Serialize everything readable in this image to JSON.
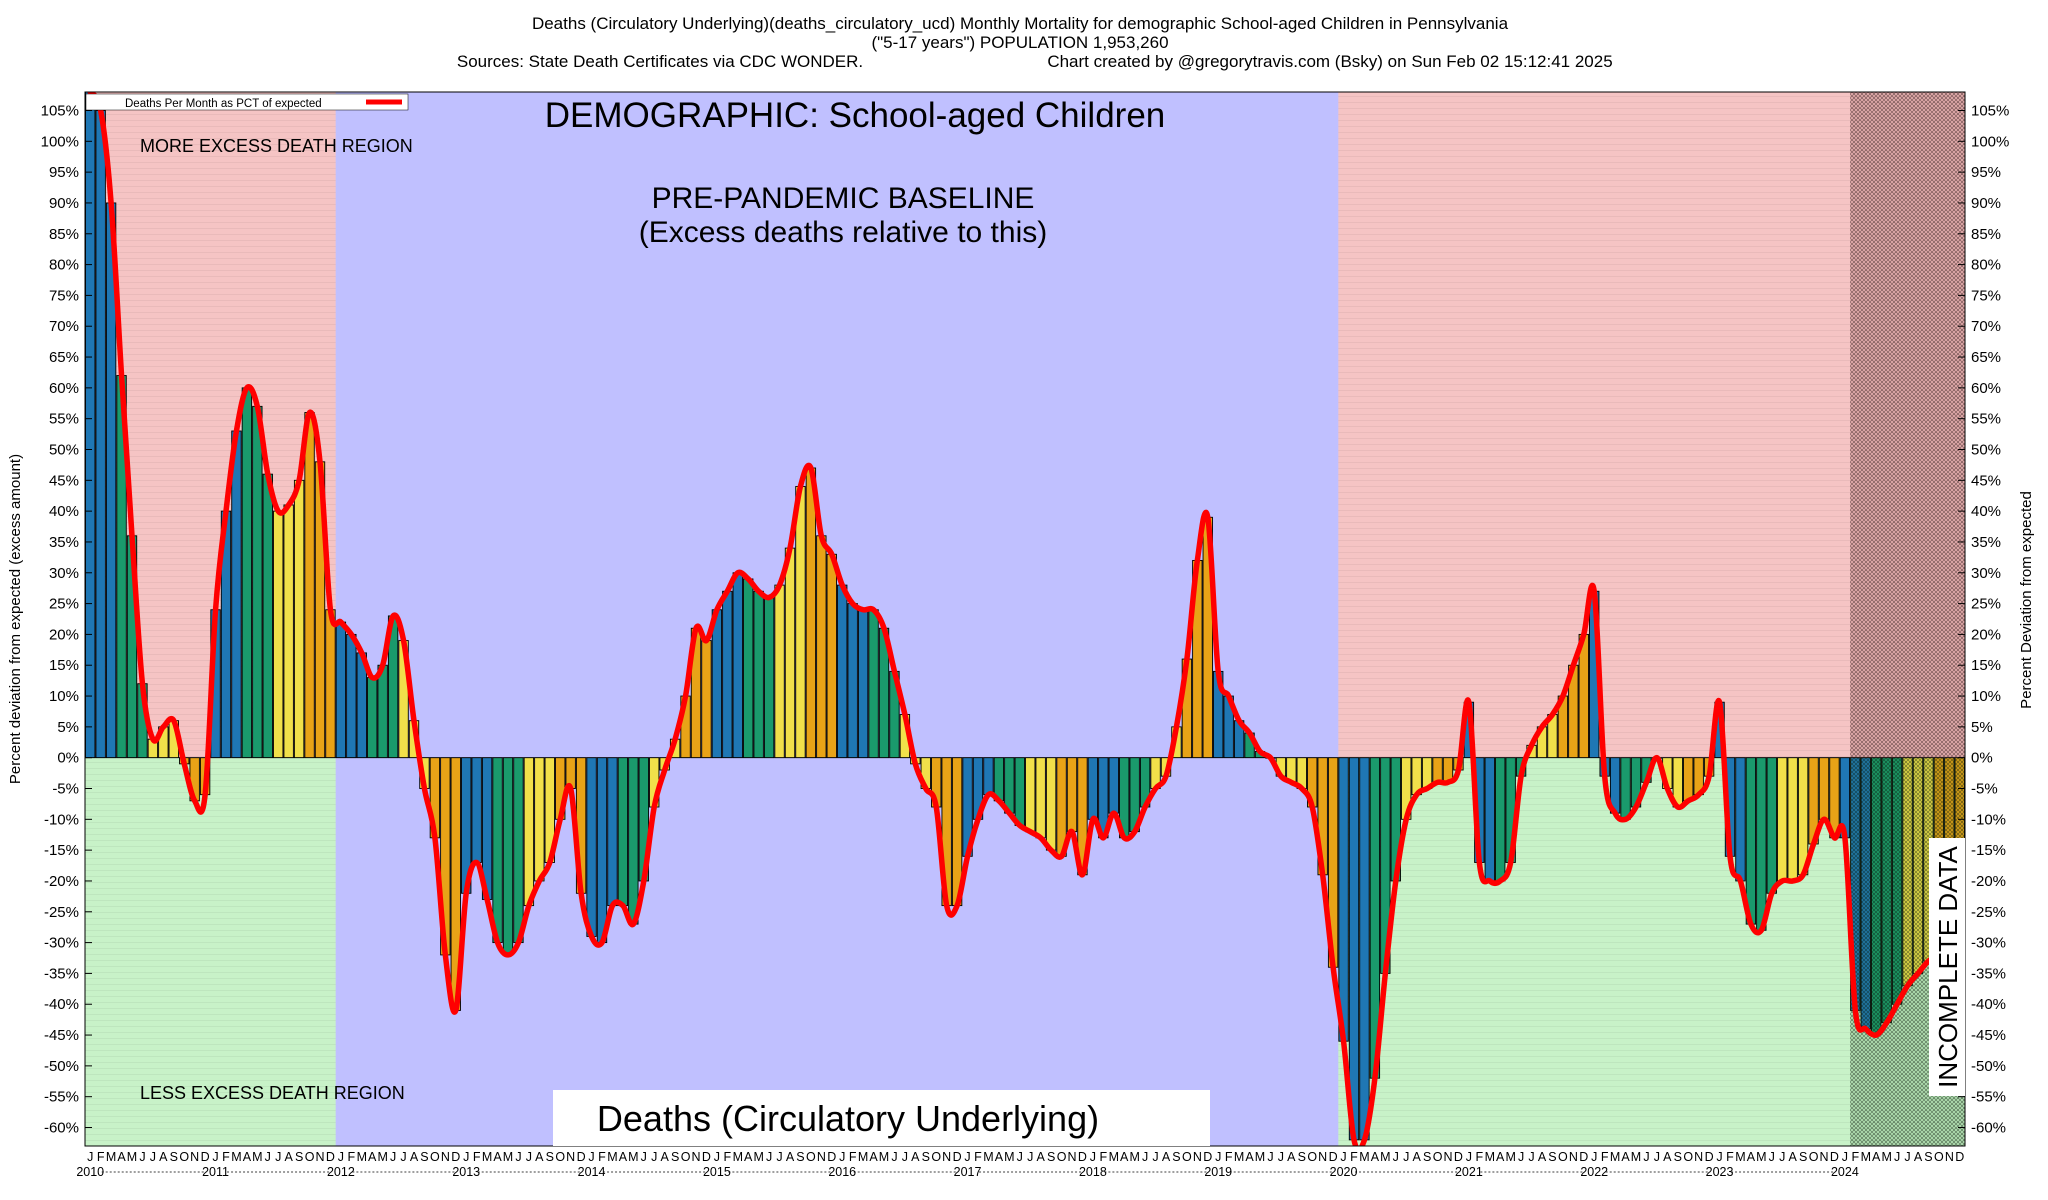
{
  "header": {
    "line1": "Deaths (Circulatory Underlying)(deaths_circulatory_ucd) Monthly Mortality for demographic School-aged Children in Pennsylvania",
    "line2": "(\"5-17 years\") POPULATION 1,953,260",
    "line3a": "Sources: State Death Certificates via CDC WONDER.",
    "line3b": "Chart created by @gregorytravis.com (Bsky) on Sun Feb 02 15:12:41 2025"
  },
  "annotations": {
    "demographic": "DEMOGRAPHIC: School-aged Children",
    "baseline1": "PRE-PANDEMIC BASELINE",
    "baseline2": "(Excess deaths relative to this)",
    "more_excess": "MORE EXCESS DEATH REGION",
    "less_excess": "LESS EXCESS DEATH REGION",
    "bottom_label": "Deaths (Circulatory Underlying)",
    "incomplete": "INCOMPLETE DATA"
  },
  "legend": {
    "label": "Deaths Per Month as PCT of expected"
  },
  "colors": {
    "excess_region": "#f5c4c4",
    "less_region": "#c8f2c8",
    "baseline_region": "#c0c0ff",
    "line": "#ff0000",
    "bar_palette": [
      "#1f77b4",
      "#1a9a6c",
      "#f1e04a",
      "#e8a317"
    ]
  },
  "chart_data": {
    "type": "bar",
    "ylabel_left": "Percent deviation from expected (excess amount)",
    "ylabel_right": "Percent Deviation from expected",
    "ylim": [
      -63,
      108
    ],
    "yticks": [
      105,
      100,
      95,
      90,
      85,
      80,
      75,
      70,
      65,
      60,
      55,
      50,
      45,
      40,
      35,
      30,
      25,
      20,
      15,
      10,
      5,
      0,
      -5,
      -10,
      -15,
      -20,
      -25,
      -30,
      -35,
      -40,
      -45,
      -50,
      -55,
      -60
    ],
    "ytick_labels": [
      "105%",
      "100%",
      "95%",
      "90%",
      "85%",
      "80%",
      "75%",
      "70%",
      "65%",
      "60%",
      "55%",
      "50%",
      "45%",
      "40%",
      "35%",
      "30%",
      "25%",
      "20%",
      "15%",
      "10%",
      "5%",
      "0%",
      "-5%",
      "-10%",
      "-15%",
      "-20%",
      "-25%",
      "-30%",
      "-35%",
      "-40%",
      "-45%",
      "-50%",
      "-55%",
      "-60%"
    ],
    "years": [
      "2010",
      "2011",
      "2012",
      "2013",
      "2014",
      "2015",
      "2016",
      "2017",
      "2018",
      "2019",
      "2020",
      "2021",
      "2022",
      "2023",
      "2024"
    ],
    "month_letters": [
      "J",
      "F",
      "M",
      "A",
      "M",
      "J",
      "J",
      "A",
      "S",
      "O",
      "N",
      "D"
    ],
    "start": "2010-01",
    "regions": {
      "baseline_start": "2012-01",
      "baseline_end": "2019-12",
      "incomplete_start": "2024-02"
    },
    "values": [
      108,
      105,
      90,
      62,
      36,
      12,
      3,
      5,
      6,
      -1,
      -7,
      -6,
      24,
      40,
      53,
      60,
      57,
      46,
      40,
      41,
      45,
      56,
      48,
      24,
      22,
      20,
      17,
      13,
      15,
      23,
      19,
      6,
      -5,
      -13,
      -32,
      -41,
      -22,
      -17,
      -23,
      -30,
      -32,
      -30,
      -24,
      -20,
      -17,
      -10,
      -5,
      -22,
      -29,
      -30,
      -24,
      -24,
      -27,
      -20,
      -8,
      -2,
      3,
      10,
      21,
      19,
      24,
      27,
      30,
      29,
      27,
      26,
      28,
      34,
      44,
      47,
      36,
      33,
      28,
      25,
      24,
      24,
      21,
      14,
      7,
      -1,
      -5,
      -8,
      -24,
      -24,
      -16,
      -10,
      -6,
      -7,
      -9,
      -11,
      -12,
      -13,
      -15,
      -16,
      -12,
      -19,
      -10,
      -13,
      -9,
      -13,
      -12,
      -8,
      -5,
      -3,
      5,
      16,
      32,
      39,
      14,
      10,
      6,
      4,
      1,
      0,
      -3,
      -4,
      -5,
      -8,
      -19,
      -34,
      -46,
      -62,
      -62,
      -52,
      -35,
      -20,
      -10,
      -6,
      -5,
      -4,
      -4,
      -2,
      9,
      -17,
      -20,
      -20,
      -17,
      -3,
      2,
      5,
      7,
      10,
      15,
      20,
      27,
      -3,
      -9,
      -10,
      -8,
      -4,
      0,
      -5,
      -8,
      -7,
      -6,
      -3,
      9,
      -16,
      -20,
      -27,
      -28,
      -22,
      -20,
      -20,
      -19,
      -14,
      -10,
      -13,
      -13,
      -41,
      -44,
      -45,
      -43,
      -40,
      -37,
      -35,
      -33,
      -32,
      -30,
      -30
    ]
  }
}
